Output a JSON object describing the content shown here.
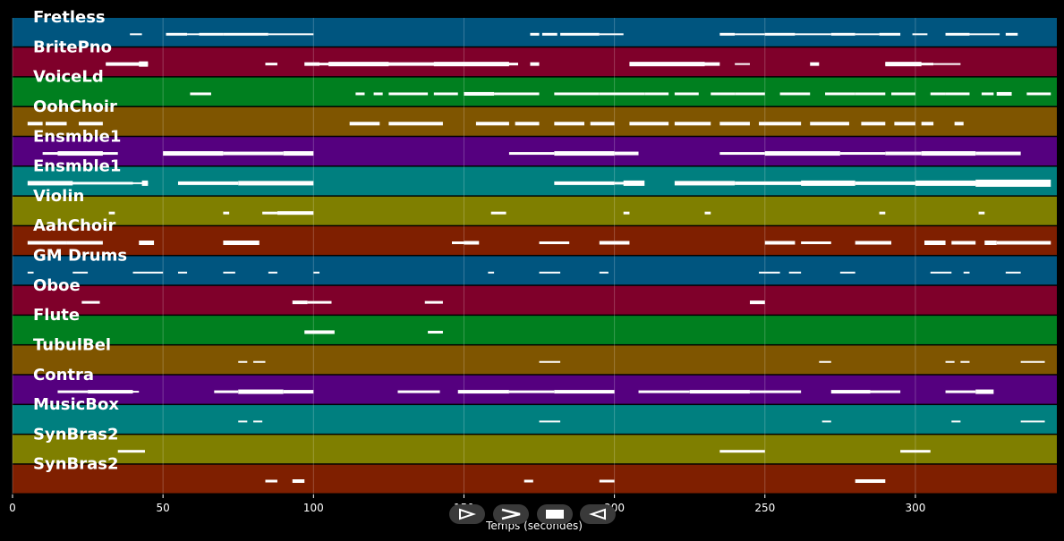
{
  "axis": {
    "xlabel": "Temps (secondes)",
    "xmin": 0,
    "xmax": 347,
    "ticks": [
      0,
      50,
      100,
      150,
      200,
      250,
      300
    ]
  },
  "tracks": [
    {
      "name": "Fretless",
      "color": "#00557f",
      "notes": [
        [
          39,
          43,
          2
        ],
        [
          51,
          58,
          3
        ],
        [
          58,
          65,
          2
        ],
        [
          62,
          70,
          3
        ],
        [
          70,
          85,
          3
        ],
        [
          85,
          100,
          2
        ],
        [
          172,
          175,
          3
        ],
        [
          176,
          181,
          3
        ],
        [
          182,
          195,
          3
        ],
        [
          195,
          203,
          2
        ],
        [
          235,
          240,
          3
        ],
        [
          240,
          250,
          2
        ],
        [
          250,
          260,
          3
        ],
        [
          260,
          272,
          2
        ],
        [
          272,
          280,
          3
        ],
        [
          280,
          288,
          2
        ],
        [
          288,
          295,
          3
        ],
        [
          299,
          304,
          2
        ],
        [
          310,
          318,
          3
        ],
        [
          318,
          328,
          2
        ],
        [
          330,
          334,
          3
        ]
      ]
    },
    {
      "name": "BritePno",
      "color": "#7f002a",
      "notes": [
        [
          31,
          45,
          2
        ],
        [
          31,
          45,
          4
        ],
        [
          42,
          45,
          6
        ],
        [
          84,
          88,
          3
        ],
        [
          97,
          102,
          4
        ],
        [
          100,
          120,
          3
        ],
        [
          105,
          125,
          5
        ],
        [
          120,
          142,
          4
        ],
        [
          125,
          150,
          3
        ],
        [
          140,
          165,
          5
        ],
        [
          150,
          168,
          3
        ],
        [
          172,
          175,
          4
        ],
        [
          205,
          215,
          3
        ],
        [
          205,
          230,
          5
        ],
        [
          215,
          235,
          4
        ],
        [
          240,
          245,
          2
        ],
        [
          265,
          268,
          4
        ],
        [
          290,
          300,
          2
        ],
        [
          290,
          302,
          5
        ],
        [
          300,
          306,
          3
        ],
        [
          306,
          315,
          2
        ]
      ]
    },
    {
      "name": "VoiceLd",
      "color": "#007f1f",
      "notes": [
        [
          59,
          66,
          3
        ],
        [
          114,
          117,
          3
        ],
        [
          120,
          123,
          3
        ],
        [
          125,
          138,
          3
        ],
        [
          140,
          148,
          3
        ],
        [
          150,
          160,
          4
        ],
        [
          160,
          175,
          3
        ],
        [
          180,
          195,
          3
        ],
        [
          195,
          210,
          3
        ],
        [
          210,
          218,
          3
        ],
        [
          220,
          228,
          3
        ],
        [
          232,
          240,
          3
        ],
        [
          240,
          250,
          3
        ],
        [
          255,
          265,
          3
        ],
        [
          270,
          280,
          3
        ],
        [
          280,
          290,
          3
        ],
        [
          292,
          300,
          3
        ],
        [
          305,
          310,
          3
        ],
        [
          310,
          318,
          3
        ],
        [
          322,
          326,
          3
        ],
        [
          327,
          332,
          4
        ],
        [
          337,
          345,
          3
        ]
      ]
    },
    {
      "name": "OohChoir",
      "color": "#7f5500",
      "notes": [
        [
          5,
          10,
          4
        ],
        [
          11,
          18,
          4
        ],
        [
          22,
          30,
          4
        ],
        [
          112,
          122,
          4
        ],
        [
          125,
          143,
          4
        ],
        [
          154,
          165,
          4
        ],
        [
          167,
          175,
          4
        ],
        [
          180,
          190,
          4
        ],
        [
          192,
          200,
          4
        ],
        [
          205,
          218,
          4
        ],
        [
          220,
          232,
          4
        ],
        [
          235,
          245,
          4
        ],
        [
          248,
          262,
          4
        ],
        [
          265,
          278,
          4
        ],
        [
          282,
          290,
          4
        ],
        [
          293,
          300,
          4
        ],
        [
          302,
          306,
          4
        ],
        [
          313,
          316,
          4
        ]
      ]
    },
    {
      "name": "Ensmble1",
      "color": "#55007f",
      "notes": [
        [
          10,
          18,
          3
        ],
        [
          15,
          30,
          5
        ],
        [
          20,
          35,
          3
        ],
        [
          50,
          70,
          5
        ],
        [
          70,
          90,
          4
        ],
        [
          90,
          100,
          5
        ],
        [
          165,
          180,
          3
        ],
        [
          180,
          200,
          5
        ],
        [
          200,
          208,
          4
        ],
        [
          235,
          250,
          3
        ],
        [
          250,
          275,
          5
        ],
        [
          275,
          290,
          3
        ],
        [
          290,
          302,
          4
        ],
        [
          302,
          320,
          5
        ],
        [
          320,
          335,
          4
        ]
      ]
    },
    {
      "name": "Ensmble1",
      "color": "#007f7f",
      "notes": [
        [
          5,
          20,
          5
        ],
        [
          18,
          40,
          3
        ],
        [
          37,
          45,
          2
        ],
        [
          43,
          45,
          6
        ],
        [
          55,
          75,
          4
        ],
        [
          75,
          100,
          5
        ],
        [
          180,
          200,
          4
        ],
        [
          200,
          205,
          3
        ],
        [
          203,
          210,
          6
        ],
        [
          220,
          240,
          5
        ],
        [
          240,
          265,
          4
        ],
        [
          262,
          280,
          6
        ],
        [
          280,
          300,
          4
        ],
        [
          300,
          320,
          6
        ],
        [
          310,
          325,
          4
        ],
        [
          320,
          345,
          8
        ]
      ]
    },
    {
      "name": "Violin",
      "color": "#7f7f00",
      "notes": [
        [
          32,
          34,
          3
        ],
        [
          70,
          72,
          3
        ],
        [
          83,
          88,
          3
        ],
        [
          88,
          100,
          4
        ],
        [
          159,
          164,
          3
        ],
        [
          203,
          205,
          3
        ],
        [
          230,
          232,
          3
        ],
        [
          288,
          290,
          3
        ],
        [
          321,
          323,
          3
        ]
      ]
    },
    {
      "name": "AahChoir",
      "color": "#7f1f00",
      "notes": [
        [
          5,
          18,
          4
        ],
        [
          18,
          30,
          4
        ],
        [
          42,
          47,
          5
        ],
        [
          70,
          82,
          5
        ],
        [
          146,
          150,
          3
        ],
        [
          150,
          155,
          4
        ],
        [
          175,
          185,
          3
        ],
        [
          195,
          205,
          4
        ],
        [
          250,
          260,
          4
        ],
        [
          262,
          272,
          3
        ],
        [
          280,
          292,
          4
        ],
        [
          303,
          310,
          5
        ],
        [
          312,
          320,
          4
        ],
        [
          323,
          327,
          5
        ],
        [
          327,
          345,
          4
        ]
      ]
    },
    {
      "name": "GM Drums",
      "color": "#00557f",
      "notes": [
        [
          5,
          7,
          2
        ],
        [
          20,
          25,
          2
        ],
        [
          40,
          50,
          2
        ],
        [
          55,
          58,
          2
        ],
        [
          70,
          74,
          2
        ],
        [
          85,
          88,
          2
        ],
        [
          100,
          102,
          2
        ],
        [
          158,
          160,
          2
        ],
        [
          175,
          182,
          2
        ],
        [
          195,
          198,
          2
        ],
        [
          248,
          255,
          2
        ],
        [
          258,
          262,
          2
        ],
        [
          275,
          280,
          2
        ],
        [
          305,
          312,
          2
        ],
        [
          316,
          318,
          2
        ],
        [
          330,
          335,
          2
        ]
      ]
    },
    {
      "name": "Oboe",
      "color": "#7f002a",
      "notes": [
        [
          23,
          29,
          3
        ],
        [
          93,
          98,
          4
        ],
        [
          98,
          106,
          3
        ],
        [
          137,
          143,
          3
        ],
        [
          245,
          250,
          4
        ]
      ]
    },
    {
      "name": "Flute",
      "color": "#007f1f",
      "notes": [
        [
          97,
          107,
          4
        ],
        [
          138,
          143,
          3
        ]
      ]
    },
    {
      "name": "TubulBel",
      "color": "#7f5500",
      "notes": [
        [
          75,
          78,
          2
        ],
        [
          80,
          84,
          2
        ],
        [
          175,
          182,
          2
        ],
        [
          268,
          272,
          2
        ],
        [
          310,
          313,
          2
        ],
        [
          315,
          318,
          2
        ],
        [
          335,
          343,
          2
        ]
      ]
    },
    {
      "name": "Contra",
      "color": "#55007f",
      "notes": [
        [
          15,
          25,
          3
        ],
        [
          25,
          40,
          4
        ],
        [
          38,
          42,
          2
        ],
        [
          67,
          75,
          3
        ],
        [
          75,
          90,
          5
        ],
        [
          90,
          100,
          4
        ],
        [
          128,
          142,
          3
        ],
        [
          148,
          165,
          4
        ],
        [
          165,
          180,
          3
        ],
        [
          180,
          200,
          4
        ],
        [
          208,
          225,
          3
        ],
        [
          225,
          245,
          4
        ],
        [
          245,
          262,
          3
        ],
        [
          272,
          285,
          4
        ],
        [
          285,
          295,
          3
        ],
        [
          310,
          320,
          3
        ],
        [
          320,
          326,
          5
        ]
      ]
    },
    {
      "name": "MusicBox",
      "color": "#007f7f",
      "notes": [
        [
          75,
          78,
          2
        ],
        [
          80,
          83,
          2
        ],
        [
          175,
          182,
          2
        ],
        [
          269,
          272,
          2
        ],
        [
          312,
          315,
          2
        ],
        [
          335,
          343,
          2
        ]
      ]
    },
    {
      "name": "SynBras2",
      "color": "#7f7f00",
      "notes": [
        [
          35,
          44,
          3
        ],
        [
          235,
          250,
          3
        ],
        [
          295,
          305,
          3
        ]
      ]
    },
    {
      "name": "SynBras2",
      "color": "#7f1f00",
      "notes": [
        [
          84,
          88,
          3
        ],
        [
          93,
          97,
          4
        ],
        [
          170,
          173,
          3
        ],
        [
          195,
          200,
          3
        ],
        [
          280,
          290,
          4
        ]
      ]
    }
  ],
  "controls": {
    "play_icon": "play-outline-icon",
    "forward_icon": "chevron-right-icon",
    "stop_icon": "stop-icon",
    "back_icon": "reverse-outline-icon"
  }
}
